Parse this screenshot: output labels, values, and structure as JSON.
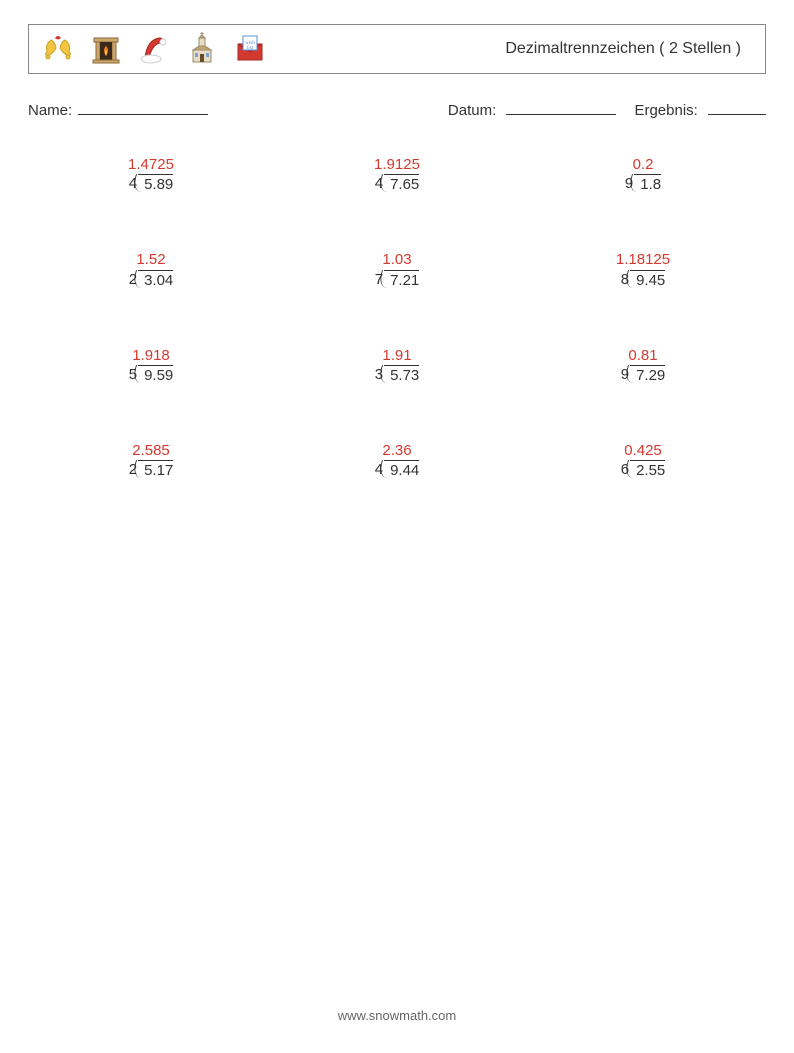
{
  "header": {
    "title": "Dezimaltrennzeichen ( 2 Stellen )",
    "icons": [
      "bells-icon",
      "fireplace-icon",
      "santa-hat-icon",
      "church-icon",
      "wishlist-envelope-icon"
    ]
  },
  "meta": {
    "name_label": "Name:",
    "date_label": "Datum:",
    "result_label": "Ergebnis:"
  },
  "colors": {
    "answer": "#d33a2f",
    "text": "#333333",
    "border": "#888888",
    "background": "#ffffff",
    "footer": "#666666"
  },
  "problems": [
    {
      "divisor": "4",
      "dividend": "5.89",
      "answer": "1.4725"
    },
    {
      "divisor": "4",
      "dividend": "7.65",
      "answer": "1.9125"
    },
    {
      "divisor": "9",
      "dividend": "1.8",
      "answer": "0.2"
    },
    {
      "divisor": "2",
      "dividend": "3.04",
      "answer": "1.52"
    },
    {
      "divisor": "7",
      "dividend": "7.21",
      "answer": "1.03"
    },
    {
      "divisor": "8",
      "dividend": "9.45",
      "answer": "1.18125"
    },
    {
      "divisor": "5",
      "dividend": "9.59",
      "answer": "1.918"
    },
    {
      "divisor": "3",
      "dividend": "5.73",
      "answer": "1.91"
    },
    {
      "divisor": "9",
      "dividend": "7.29",
      "answer": "0.81"
    },
    {
      "divisor": "2",
      "dividend": "5.17",
      "answer": "2.585"
    },
    {
      "divisor": "4",
      "dividend": "9.44",
      "answer": "2.36"
    },
    {
      "divisor": "6",
      "dividend": "2.55",
      "answer": "0.425"
    }
  ],
  "footer": {
    "url": "www.snowmath.com"
  }
}
